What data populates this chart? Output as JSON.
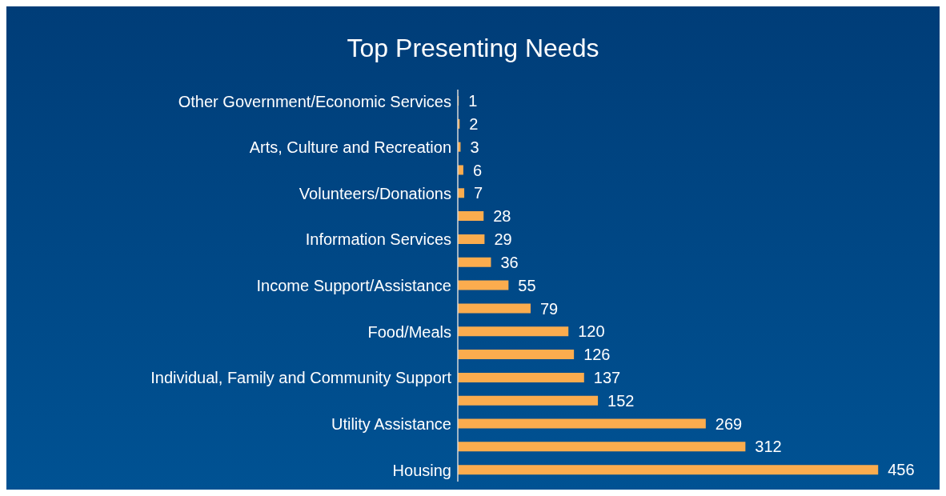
{
  "chart_data": {
    "type": "bar",
    "title": "Top Presenting Needs",
    "orientation": "horizontal",
    "data_labels": true,
    "color": "#fbac4e",
    "categories": [
      "Other Government/Economic Services",
      null,
      "Arts, Culture and Recreation",
      null,
      "Volunteers/Donations",
      null,
      "Information Services",
      null,
      "Income Support/Assistance",
      null,
      "Food/Meals",
      null,
      "Individual, Family and Community Support",
      null,
      "Utility Assistance",
      null,
      "Housing"
    ],
    "values": [
      1,
      2,
      3,
      6,
      7,
      28,
      29,
      36,
      55,
      79,
      120,
      126,
      137,
      152,
      269,
      312,
      456
    ]
  }
}
